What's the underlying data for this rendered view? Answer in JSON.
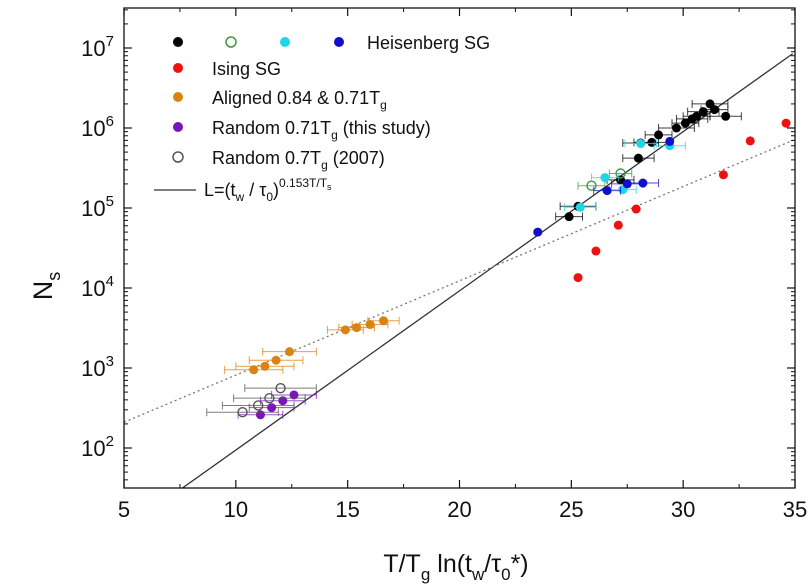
{
  "chart_data": {
    "type": "scatter",
    "xlabel": "T/T_g ln(t_w/τ_0*)",
    "ylabel": "N_s",
    "y_scale": "log",
    "xlim": [
      5,
      35
    ],
    "ylim_log10": [
      1.5,
      7.5
    ],
    "x_ticks": [
      5,
      10,
      15,
      20,
      25,
      30,
      35
    ],
    "x_tick_labels": [
      "5",
      "10",
      "15",
      "20",
      "25",
      "30",
      "35"
    ],
    "y_ticks_exp": [
      2,
      3,
      4,
      5,
      6,
      7
    ],
    "y_tick_base": "10",
    "legend_position": "top-left",
    "colors": {
      "black": "#000000",
      "green": "#3c9a3c",
      "cyan": "#1fd6e6",
      "blue": "#1010cc",
      "red": "#ee1111",
      "orange": "#d98313",
      "purple": "#7a16b8",
      "gray": "#555555",
      "line": "#333333"
    },
    "legend": [
      {
        "label": "Heisenberg SG",
        "markers": [
          {
            "color": "black",
            "open": false
          },
          {
            "color": "green",
            "open": true
          },
          {
            "color": "cyan",
            "open": false
          },
          {
            "color": "blue",
            "open": false
          }
        ]
      },
      {
        "label": "Ising SG",
        "markers": [
          {
            "color": "red",
            "open": false
          }
        ]
      },
      {
        "label": "Aligned 0.84 & 0.71T",
        "sub": "g",
        "markers": [
          {
            "color": "orange",
            "open": false
          }
        ]
      },
      {
        "label": "Random 0.71T",
        "sub": "g",
        "suffix": " (this study)",
        "markers": [
          {
            "color": "purple",
            "open": false
          }
        ]
      },
      {
        "label": "Random 0.7T",
        "sub": "g",
        "suffix": " (2007)",
        "markers": [
          {
            "color": "gray",
            "open": true
          }
        ]
      },
      {
        "label": "L=(t",
        "line": true,
        "line_label_parts": [
          "L=(t",
          "w",
          " / τ",
          "0",
          ")",
          "0.153T/T",
          "s"
        ]
      }
    ],
    "series": [
      {
        "name": "Heisenberg SG",
        "color": "black",
        "open": false,
        "points": [
          [
            24.9,
            78000,
            0.6
          ],
          [
            25.3,
            105000,
            0.8
          ],
          [
            27.2,
            225000,
            0.6
          ],
          [
            28.0,
            420000,
            0.7
          ],
          [
            28.1,
            650000,
            0.8
          ],
          [
            28.6,
            660000,
            0.8
          ],
          [
            28.9,
            820000,
            0.6
          ],
          [
            29.7,
            1000000,
            0.8
          ],
          [
            30.1,
            1150000,
            0.6
          ],
          [
            30.4,
            1300000,
            0.7
          ],
          [
            30.6,
            1400000,
            0.6
          ],
          [
            30.9,
            1600000,
            0.7
          ],
          [
            31.2,
            2000000,
            0.8
          ],
          [
            31.4,
            1700000,
            0.6
          ],
          [
            31.9,
            1400000,
            0.7
          ]
        ]
      },
      {
        "name": "Heisenberg SG",
        "color": "green",
        "open": true,
        "points": [
          [
            25.9,
            190000,
            0.6
          ],
          [
            27.2,
            270000,
            0.5
          ]
        ]
      },
      {
        "name": "Heisenberg SG",
        "color": "cyan",
        "open": false,
        "points": [
          [
            25.4,
            102000,
            0.7
          ],
          [
            26.5,
            240000,
            0.6
          ],
          [
            27.3,
            170000,
            0.6
          ],
          [
            28.1,
            640000,
            0.7
          ],
          [
            29.4,
            600000,
            0.7
          ]
        ]
      },
      {
        "name": "Heisenberg SG",
        "color": "blue",
        "open": false,
        "points": [
          [
            23.5,
            50000,
            0
          ],
          [
            26.6,
            165000,
            0.6
          ],
          [
            27.5,
            200000,
            0.7
          ],
          [
            28.2,
            205000,
            0.7
          ],
          [
            29.4,
            680000,
            0
          ]
        ]
      },
      {
        "name": "Ising SG",
        "color": "red",
        "open": false,
        "points": [
          [
            25.3,
            13500,
            0
          ],
          [
            26.1,
            29000,
            0
          ],
          [
            27.1,
            61000,
            0
          ],
          [
            27.9,
            97000,
            0
          ],
          [
            31.8,
            260000,
            0
          ],
          [
            33.0,
            690000,
            0
          ],
          [
            34.6,
            1150000,
            0
          ]
        ]
      },
      {
        "name": "Aligned 0.84 & 0.71Tg",
        "color": "orange",
        "open": false,
        "points": [
          [
            10.8,
            950,
            1.3
          ],
          [
            11.3,
            1050,
            1.3
          ],
          [
            11.8,
            1250,
            1.2
          ],
          [
            12.4,
            1600,
            1.2
          ],
          [
            14.9,
            3000,
            0.8
          ],
          [
            15.4,
            3200,
            0.8
          ],
          [
            16.0,
            3500,
            0.8
          ],
          [
            16.6,
            3900,
            0.7
          ]
        ]
      },
      {
        "name": "Random 0.71Tg (this study)",
        "color": "purple",
        "open": false,
        "points": [
          [
            11.1,
            260,
            1.0
          ],
          [
            11.6,
            320,
            1.0
          ],
          [
            12.1,
            390,
            1.0
          ],
          [
            12.6,
            460,
            1.0
          ]
        ]
      },
      {
        "name": "Random 0.7Tg (2007)",
        "color": "gray",
        "open": true,
        "points": [
          [
            10.3,
            280,
            1.6
          ],
          [
            11.0,
            340,
            1.6
          ],
          [
            11.5,
            420,
            1.6
          ],
          [
            12.0,
            560,
            1.6
          ]
        ]
      }
    ],
    "fit_line_solid": {
      "x": [
        7.5,
        34.9
      ],
      "y": [
        30,
        8500000
      ]
    },
    "fit_line_dotted": {
      "x": [
        5,
        34.9
      ],
      "y": [
        210,
        700000
      ]
    }
  }
}
